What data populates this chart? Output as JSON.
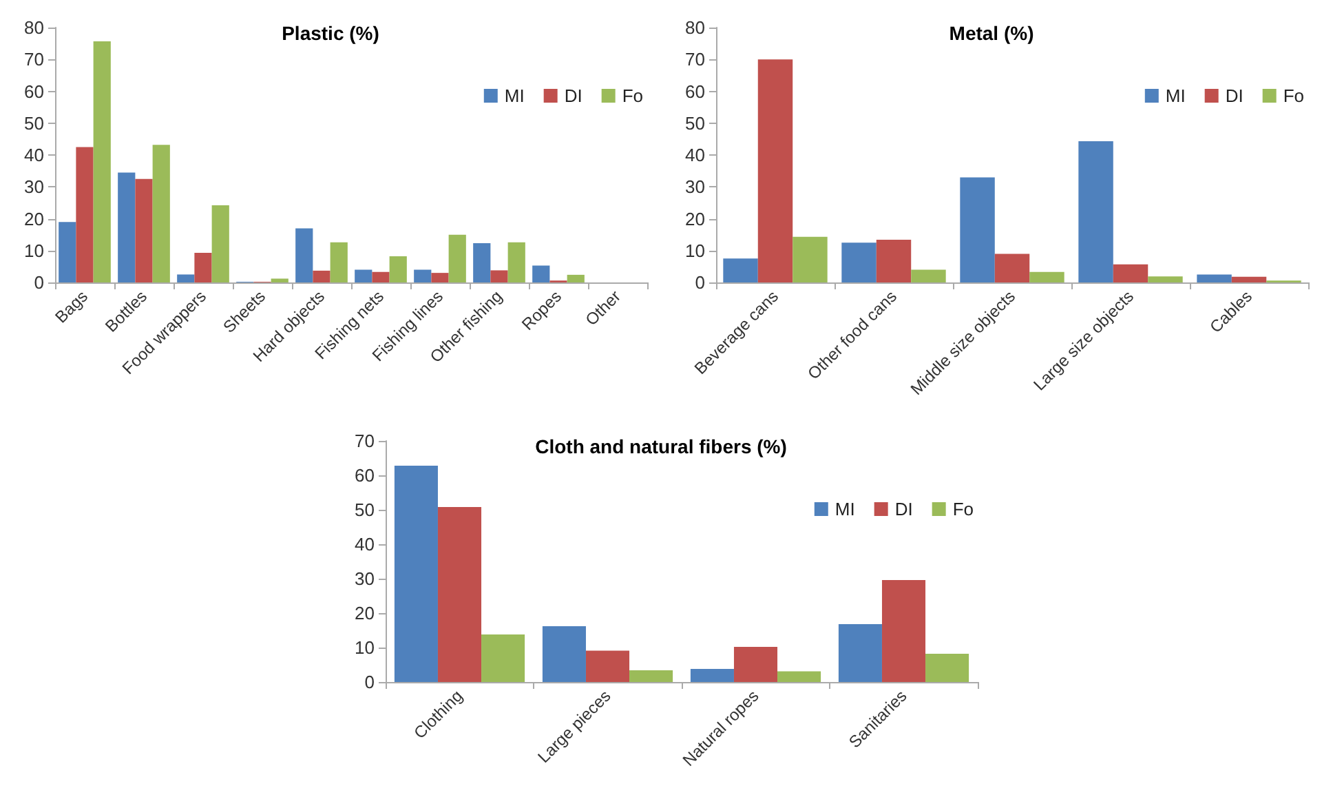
{
  "chart_data": [
    {
      "type": "bar",
      "title": "Plastic (%)",
      "categories": [
        "Bags",
        "Bottles",
        "Food wrappers",
        "Sheets",
        "Hard objects",
        "Fishing nets",
        "Fishing lines",
        "Other fishing",
        "Ropes",
        "Other"
      ],
      "series": [
        {
          "name": "MI",
          "color": "#4f81bd",
          "values": [
            19,
            34.5,
            2.5,
            0.2,
            17,
            4,
            4,
            12.3,
            5.3,
            0
          ]
        },
        {
          "name": "DI",
          "color": "#c0504d",
          "values": [
            42.5,
            32.5,
            9.3,
            0.2,
            3.7,
            3.3,
            3,
            3.8,
            0.6,
            0
          ]
        },
        {
          "name": "Fo",
          "color": "#9bbb59",
          "values": [
            75.7,
            43.2,
            24.2,
            1.2,
            12.6,
            8.2,
            15,
            12.6,
            2.4,
            0
          ]
        }
      ],
      "ylim": [
        0,
        80
      ],
      "yticks": [
        0,
        10,
        20,
        30,
        40,
        50,
        60,
        70,
        80
      ],
      "grid": false,
      "legend": "top right"
    },
    {
      "type": "bar",
      "title": "Metal (%)",
      "categories": [
        "Beverage cans",
        "Other food cans",
        "Middle size objects",
        "Large size objects",
        "Cables"
      ],
      "series": [
        {
          "name": "MI",
          "color": "#4f81bd",
          "values": [
            7.5,
            12.5,
            33,
            44.3,
            2.5
          ]
        },
        {
          "name": "DI",
          "color": "#c0504d",
          "values": [
            70,
            13.4,
            9,
            5.7,
            1.8
          ]
        },
        {
          "name": "Fo",
          "color": "#9bbb59",
          "values": [
            14.3,
            4,
            3.3,
            1.9,
            0.6
          ]
        }
      ],
      "ylim": [
        0,
        80
      ],
      "yticks": [
        0,
        10,
        20,
        30,
        40,
        50,
        60,
        70,
        80
      ],
      "grid": false,
      "legend": "top right"
    },
    {
      "type": "bar",
      "title": "Cloth and natural fibers (%)",
      "categories": [
        "Clothing",
        "Large pieces",
        "Natural ropes",
        "Sanitaries"
      ],
      "series": [
        {
          "name": "MI",
          "color": "#4f81bd",
          "values": [
            62.8,
            16.2,
            3.8,
            16.8
          ]
        },
        {
          "name": "DI",
          "color": "#c0504d",
          "values": [
            50.8,
            9.1,
            10.2,
            29.6
          ]
        },
        {
          "name": "Fo",
          "color": "#9bbb59",
          "values": [
            13.8,
            3.4,
            3.1,
            8.2
          ]
        }
      ],
      "ylim": [
        0,
        70
      ],
      "yticks": [
        0,
        10,
        20,
        30,
        40,
        50,
        60,
        70
      ],
      "grid": false,
      "legend": "top right"
    }
  ]
}
